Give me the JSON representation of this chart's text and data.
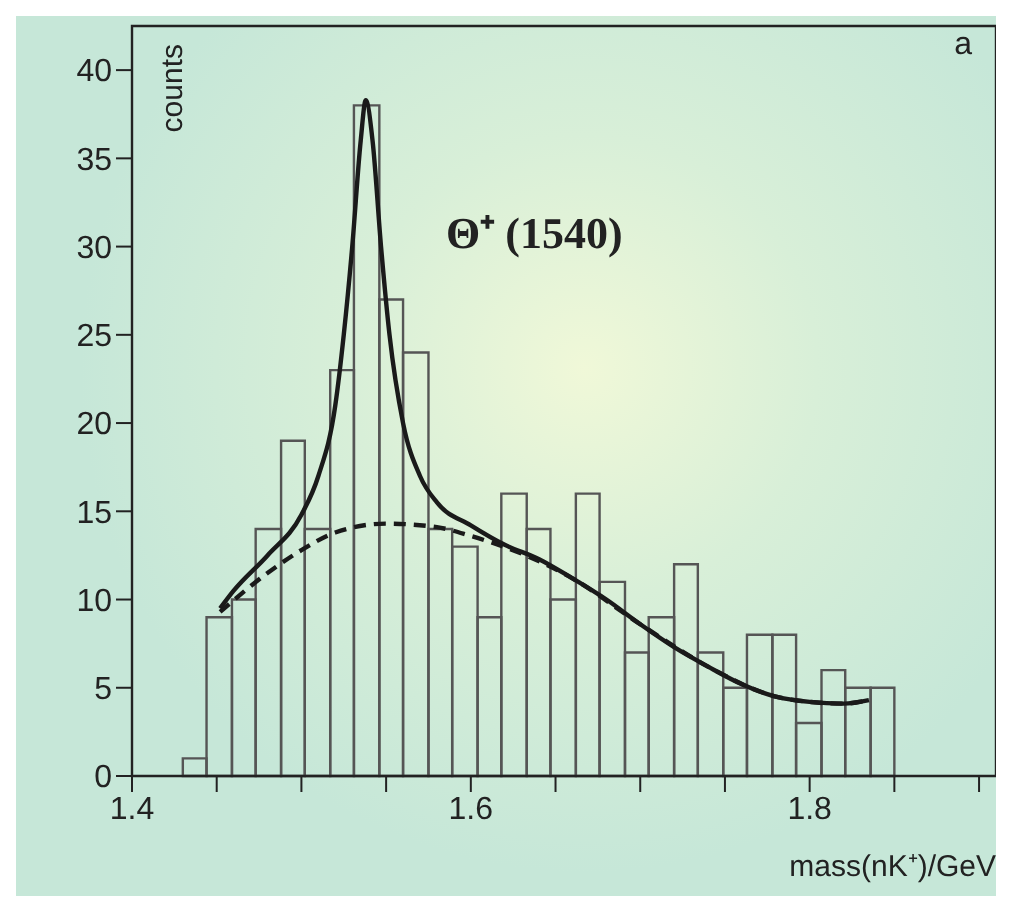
{
  "chart_data": {
    "type": "histogram",
    "xlabel": "mass(nK⁺)/GeV",
    "ylabel": "counts",
    "annotations": [
      "Θ⁺ (1540)",
      "a"
    ],
    "bins": [
      1.43,
      1.444,
      1.459,
      1.473,
      1.488,
      1.502,
      1.517,
      1.531,
      1.546,
      1.56,
      1.575,
      1.589,
      1.604,
      1.618,
      1.633,
      1.647,
      1.662,
      1.676,
      1.691,
      1.705,
      1.72,
      1.734,
      1.749,
      1.763,
      1.778,
      1.792,
      1.807,
      1.821,
      1.836,
      1.85
    ],
    "values": [
      1,
      9,
      10,
      14,
      19,
      14,
      23,
      38,
      27,
      24,
      14,
      13,
      9,
      16,
      14,
      10,
      16,
      11,
      7,
      9,
      12,
      7,
      5,
      8,
      8,
      3,
      6,
      5,
      5
    ],
    "color": "#555555",
    "series": [
      {
        "type": "line",
        "line_style": "solid",
        "color": "#1a1a1a",
        "x": [
          1.452,
          1.46,
          1.48,
          1.5,
          1.51,
          1.52,
          1.525,
          1.53,
          1.535,
          1.538,
          1.542,
          1.547,
          1.552,
          1.56,
          1.57,
          1.58,
          1.6,
          1.62,
          1.64,
          1.66,
          1.68,
          1.7,
          1.72,
          1.74,
          1.76,
          1.78,
          1.8,
          1.82,
          1.835
        ],
        "values": [
          9.5,
          10.5,
          12.5,
          14.8,
          17,
          21,
          25,
          30,
          36,
          38.3,
          36,
          30,
          25,
          20,
          17,
          15.5,
          14.2,
          13.1,
          12.3,
          11.2,
          10,
          8.6,
          7.3,
          6.2,
          5.2,
          4.5,
          4.2,
          4.1,
          4.3
        ]
      },
      {
        "type": "line",
        "line_style": "dashed",
        "color": "#1a1a1a",
        "x": [
          1.452,
          1.48,
          1.5,
          1.52,
          1.55,
          1.58,
          1.6,
          1.63,
          1.66,
          1.7,
          1.74,
          1.78,
          1.8,
          1.82,
          1.835
        ],
        "values": [
          9.3,
          11.5,
          12.8,
          13.8,
          14.3,
          14.1,
          13.6,
          12.6,
          11.2,
          8.6,
          6.2,
          4.5,
          4.2,
          4.1,
          4.3
        ]
      }
    ],
    "xlim": [
      1.4,
      1.91
    ],
    "xticks": [
      1.4,
      {
        "value": 1.45,
        "label": null
      },
      {
        "value": 1.5,
        "label": null
      },
      {
        "value": 1.55,
        "label": null
      },
      1.6,
      {
        "value": 1.65,
        "label": null
      },
      {
        "value": 1.7,
        "label": null
      },
      {
        "value": 1.75,
        "label": null
      },
      1.8,
      {
        "value": 1.85,
        "label": null
      },
      {
        "value": 1.9,
        "label": null
      }
    ],
    "ylim": [
      0,
      42.5
    ],
    "yticks": [
      0,
      5,
      10,
      15,
      20,
      25,
      30,
      35,
      40
    ],
    "marker": "none"
  }
}
